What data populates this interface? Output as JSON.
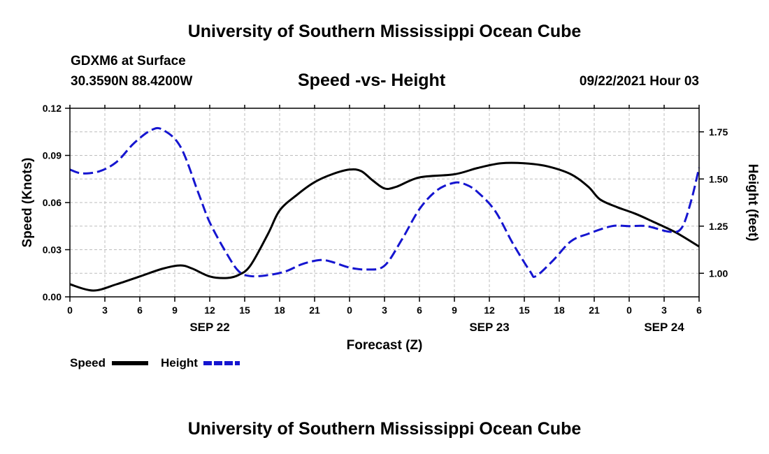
{
  "header": {
    "title": "University of Southern Mississippi Ocean Cube",
    "station": "GDXM6 at Surface",
    "coords": "30.3590N  88.4200W",
    "subtitle": "Speed -vs- Height",
    "datetime": "09/22/2021 Hour 03"
  },
  "footer": {
    "title": "University of Southern Mississippi Ocean Cube"
  },
  "legend": {
    "speed_label": "Speed",
    "height_label": "Height"
  },
  "colors": {
    "speed": "#000000",
    "height": "#1515d0",
    "grid": "#bdbdbd"
  },
  "chart_data": {
    "type": "line",
    "title": "Speed -vs- Height",
    "xlabel": "Forecast (Z)",
    "ylabel": "Speed (Knots)",
    "y2label": "Height (feet)",
    "x_range": [
      0,
      54
    ],
    "ylim": [
      0,
      0.12
    ],
    "y2lim": [
      0.875,
      1.875
    ],
    "x_ticks": [
      0,
      3,
      6,
      9,
      12,
      15,
      18,
      21,
      24,
      27,
      30,
      33,
      36,
      39,
      42,
      45,
      48,
      51,
      54
    ],
    "x_tick_labels": [
      "0",
      "3",
      "6",
      "9",
      "12",
      "15",
      "18",
      "21",
      "0",
      "3",
      "6",
      "9",
      "12",
      "15",
      "18",
      "21",
      "0",
      "3",
      "6"
    ],
    "date_labels": [
      {
        "x": 12,
        "label": "SEP 22"
      },
      {
        "x": 36,
        "label": "SEP 23"
      },
      {
        "x": 51,
        "label": "SEP 24"
      }
    ],
    "y_ticks": [
      0,
      0.03,
      0.06,
      0.09,
      0.12
    ],
    "y_tick_labels": [
      "0.00",
      "0.03",
      "0.06",
      "0.09",
      "0.12"
    ],
    "y2_ticks": [
      1.0,
      1.25,
      1.5,
      1.75
    ],
    "y2_tick_labels": [
      "1.00",
      "1.25",
      "1.50",
      "1.75"
    ],
    "grid": true,
    "series": [
      {
        "name": "Speed",
        "axis": "left",
        "style": "solid",
        "points": [
          [
            0,
            0.008
          ],
          [
            2,
            0.004
          ],
          [
            4,
            0.008
          ],
          [
            6,
            0.013
          ],
          [
            8,
            0.018
          ],
          [
            9.5,
            0.02
          ],
          [
            10.5,
            0.018
          ],
          [
            12,
            0.013
          ],
          [
            13.5,
            0.012
          ],
          [
            14.5,
            0.014
          ],
          [
            15.5,
            0.02
          ],
          [
            17,
            0.04
          ],
          [
            18,
            0.055
          ],
          [
            19.5,
            0.065
          ],
          [
            21,
            0.073
          ],
          [
            22.5,
            0.078
          ],
          [
            24,
            0.081
          ],
          [
            25,
            0.08
          ],
          [
            26,
            0.074
          ],
          [
            27,
            0.069
          ],
          [
            28,
            0.07
          ],
          [
            30,
            0.076
          ],
          [
            33,
            0.078
          ],
          [
            35,
            0.082
          ],
          [
            37,
            0.085
          ],
          [
            39,
            0.085
          ],
          [
            41,
            0.083
          ],
          [
            43,
            0.078
          ],
          [
            44.5,
            0.07
          ],
          [
            45.5,
            0.062
          ],
          [
            47,
            0.057
          ],
          [
            48.5,
            0.053
          ],
          [
            50,
            0.048
          ],
          [
            52,
            0.041
          ],
          [
            54,
            0.032
          ]
        ]
      },
      {
        "name": "Height",
        "axis": "right",
        "style": "dashed",
        "points": [
          [
            0,
            1.55
          ],
          [
            1,
            1.53
          ],
          [
            2.5,
            1.54
          ],
          [
            4,
            1.59
          ],
          [
            5.5,
            1.69
          ],
          [
            7,
            1.76
          ],
          [
            8,
            1.76
          ],
          [
            9.5,
            1.67
          ],
          [
            11,
            1.43
          ],
          [
            12,
            1.27
          ],
          [
            13.5,
            1.1
          ],
          [
            14.5,
            1.01
          ],
          [
            15.5,
            0.985
          ],
          [
            17,
            0.99
          ],
          [
            18.5,
            1.01
          ],
          [
            20,
            1.05
          ],
          [
            21.5,
            1.07
          ],
          [
            22.5,
            1.06
          ],
          [
            24,
            1.03
          ],
          [
            25.5,
            1.02
          ],
          [
            27,
            1.04
          ],
          [
            28.5,
            1.18
          ],
          [
            30,
            1.34
          ],
          [
            31.5,
            1.44
          ],
          [
            33,
            1.48
          ],
          [
            34,
            1.47
          ],
          [
            35,
            1.43
          ],
          [
            36.5,
            1.33
          ],
          [
            38,
            1.16
          ],
          [
            39.5,
            1.01
          ],
          [
            40,
            0.985
          ],
          [
            41.5,
            1.07
          ],
          [
            43,
            1.17
          ],
          [
            44.5,
            1.21
          ],
          [
            46.5,
            1.25
          ],
          [
            48,
            1.25
          ],
          [
            49.5,
            1.25
          ],
          [
            51.5,
            1.22
          ],
          [
            52.5,
            1.24
          ],
          [
            53.3,
            1.38
          ],
          [
            54,
            1.56
          ]
        ]
      }
    ]
  }
}
